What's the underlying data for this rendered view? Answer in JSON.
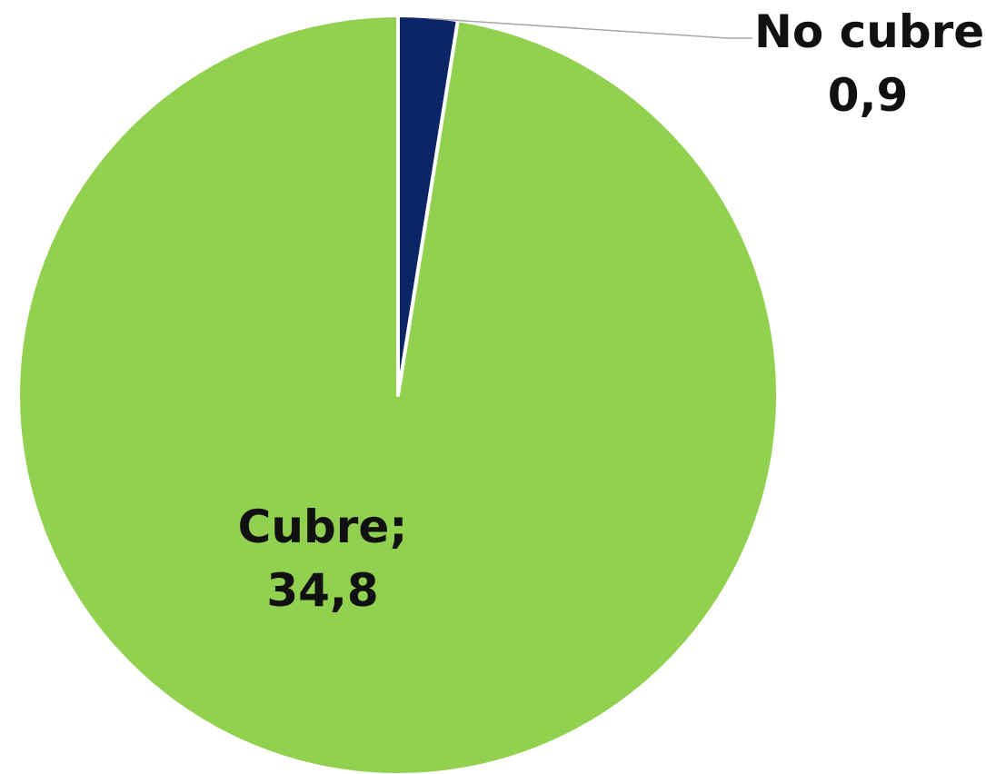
{
  "chart_data": {
    "type": "pie",
    "title": "",
    "slices": [
      {
        "label": "No cubre",
        "value": 0.9,
        "color": "#0b2566",
        "data_label_name": "No cubre;",
        "data_label_value": "0,9"
      },
      {
        "label": "Cubre",
        "value": 34.8,
        "color": "#92d050",
        "data_label_name": "Cubre;",
        "data_label_value": "34,8"
      }
    ],
    "start_angle_deg": 0,
    "direction": "clockwise",
    "slice_border_color": "#ffffff",
    "leader_line_color": "#a6a6a6",
    "legend": "none"
  }
}
